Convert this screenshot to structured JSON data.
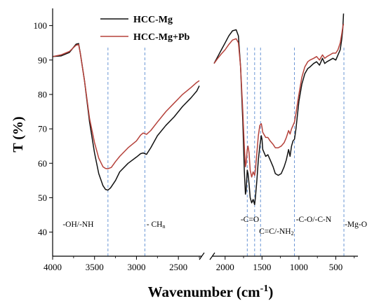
{
  "chart_data": {
    "type": "line",
    "title": "",
    "xlabel": "Wavenumber (cm",
    "xlabel_sup": "-1",
    "xlabel_close": ")",
    "ylabel": "T (%)",
    "x_break": [
      2200,
      2150
    ],
    "xlim_left": [
      4000,
      2200
    ],
    "xlim_right": [
      2150,
      200
    ],
    "ylim": [
      33,
      105
    ],
    "x_ticks": [
      {
        "v": 4000,
        "label": "4000"
      },
      {
        "v": 3500,
        "label": "3500"
      },
      {
        "v": 3000,
        "label": "3000"
      },
      {
        "v": 2500,
        "label": "2500"
      },
      {
        "v": 2000,
        "label": "2000"
      },
      {
        "v": 1500,
        "label": "1500"
      },
      {
        "v": 1000,
        "label": "1000"
      },
      {
        "v": 500,
        "label": "500"
      }
    ],
    "y_ticks": [
      {
        "v": 40,
        "label": "40"
      },
      {
        "v": 50,
        "label": "50"
      },
      {
        "v": 60,
        "label": "60"
      },
      {
        "v": 70,
        "label": "70"
      },
      {
        "v": 80,
        "label": "80"
      },
      {
        "v": 90,
        "label": "90"
      },
      {
        "v": 100,
        "label": "100"
      }
    ],
    "legend_position": "top-left",
    "series": [
      {
        "name": "HCC-Mg",
        "color": "#111111",
        "segments": [
          [
            [
              4000,
              91
            ],
            [
              3900,
              91.2
            ],
            [
              3800,
              92.2
            ],
            [
              3720,
              94.6
            ],
            [
              3690,
              94.8
            ],
            [
              3670,
              92
            ],
            [
              3620,
              84
            ],
            [
              3560,
              72
            ],
            [
              3500,
              63
            ],
            [
              3450,
              57
            ],
            [
              3400,
              53.5
            ],
            [
              3370,
              52.4
            ],
            [
              3340,
              52.2
            ],
            [
              3310,
              52.8
            ],
            [
              3250,
              55
            ],
            [
              3200,
              57.5
            ],
            [
              3100,
              60
            ],
            [
              3000,
              61.8
            ],
            [
              2950,
              62.8
            ],
            [
              2920,
              63
            ],
            [
              2880,
              62.6
            ],
            [
              2830,
              64.5
            ],
            [
              2750,
              68
            ],
            [
              2650,
              71
            ],
            [
              2550,
              73.5
            ],
            [
              2450,
              76.5
            ],
            [
              2350,
              79
            ],
            [
              2280,
              81
            ],
            [
              2250,
              82.5
            ]
          ],
          [
            [
              2150,
              89
            ],
            [
              2100,
              91
            ],
            [
              2050,
              93
            ],
            [
              2000,
              95
            ],
            [
              1950,
              97
            ],
            [
              1900,
              98.5
            ],
            [
              1850,
              98.8
            ],
            [
              1820,
              97
            ],
            [
              1790,
              88
            ],
            [
              1760,
              72
            ],
            [
              1740,
              58
            ],
            [
              1725,
              51
            ],
            [
              1715,
              52
            ],
            [
              1700,
              58
            ],
            [
              1690,
              57
            ],
            [
              1675,
              54
            ],
            [
              1660,
              50
            ],
            [
              1640,
              48.5
            ],
            [
              1620,
              49.5
            ],
            [
              1600,
              48
            ],
            [
              1590,
              50
            ],
            [
              1570,
              55
            ],
            [
              1550,
              61
            ],
            [
              1530,
              65
            ],
            [
              1510,
              68
            ],
            [
              1500,
              67
            ],
            [
              1490,
              64
            ],
            [
              1450,
              62
            ],
            [
              1420,
              62.5
            ],
            [
              1390,
              61
            ],
            [
              1350,
              59
            ],
            [
              1320,
              57
            ],
            [
              1280,
              56.5
            ],
            [
              1240,
              57
            ],
            [
              1200,
              59
            ],
            [
              1170,
              61
            ],
            [
              1140,
              64
            ],
            [
              1120,
              62
            ],
            [
              1100,
              65
            ],
            [
              1080,
              66.5
            ],
            [
              1060,
              67
            ],
            [
              1040,
              70
            ],
            [
              1000,
              78
            ],
            [
              960,
              83
            ],
            [
              920,
              86
            ],
            [
              880,
              87.5
            ],
            [
              850,
              88
            ],
            [
              800,
              89
            ],
            [
              760,
              89.5
            ],
            [
              720,
              88.5
            ],
            [
              680,
              90.5
            ],
            [
              650,
              89
            ],
            [
              620,
              89.5
            ],
            [
              580,
              90
            ],
            [
              540,
              90.5
            ],
            [
              500,
              90
            ],
            [
              470,
              91.5
            ],
            [
              440,
              93
            ],
            [
              420,
              96
            ],
            [
              405,
              99
            ],
            [
              395,
              103.5
            ]
          ]
        ]
      },
      {
        "name": "HCC-Mg+Pb",
        "color": "#b5413a",
        "segments": [
          [
            [
              4000,
              91
            ],
            [
              3900,
              91.5
            ],
            [
              3800,
              92.5
            ],
            [
              3720,
              94.3
            ],
            [
              3690,
              94.5
            ],
            [
              3670,
              92
            ],
            [
              3620,
              84
            ],
            [
              3560,
              73
            ],
            [
              3500,
              66
            ],
            [
              3450,
              61.5
            ],
            [
              3400,
              59
            ],
            [
              3370,
              58.5
            ],
            [
              3340,
              58.4
            ],
            [
              3300,
              58.8
            ],
            [
              3250,
              60.5
            ],
            [
              3200,
              62
            ],
            [
              3100,
              64.5
            ],
            [
              3000,
              66.5
            ],
            [
              2950,
              68.2
            ],
            [
              2920,
              68.8
            ],
            [
              2880,
              68.4
            ],
            [
              2830,
              69.5
            ],
            [
              2750,
              72
            ],
            [
              2650,
              75
            ],
            [
              2550,
              77.5
            ],
            [
              2450,
              80
            ],
            [
              2350,
              82
            ],
            [
              2280,
              83.5
            ],
            [
              2250,
              84
            ]
          ],
          [
            [
              2150,
              89
            ],
            [
              2100,
              90.5
            ],
            [
              2050,
              91.8
            ],
            [
              2000,
              93
            ],
            [
              1950,
              94.5
            ],
            [
              1900,
              95.8
            ],
            [
              1850,
              96.2
            ],
            [
              1820,
              95
            ],
            [
              1790,
              88
            ],
            [
              1760,
              75
            ],
            [
              1740,
              65
            ],
            [
              1725,
              59
            ],
            [
              1715,
              60
            ],
            [
              1700,
              64
            ],
            [
              1690,
              65
            ],
            [
              1675,
              63
            ],
            [
              1660,
              58
            ],
            [
              1640,
              56
            ],
            [
              1620,
              57.5
            ],
            [
              1600,
              56.5
            ],
            [
              1590,
              58
            ],
            [
              1570,
              63
            ],
            [
              1550,
              68
            ],
            [
              1530,
              71
            ],
            [
              1510,
              71.5
            ],
            [
              1500,
              70.5
            ],
            [
              1490,
              69
            ],
            [
              1450,
              67.5
            ],
            [
              1420,
              67.5
            ],
            [
              1390,
              66.5
            ],
            [
              1350,
              65.5
            ],
            [
              1320,
              64.5
            ],
            [
              1280,
              64.5
            ],
            [
              1240,
              65
            ],
            [
              1200,
              66
            ],
            [
              1170,
              67.5
            ],
            [
              1140,
              69.5
            ],
            [
              1120,
              68.5
            ],
            [
              1100,
              70
            ],
            [
              1080,
              71
            ],
            [
              1060,
              72
            ],
            [
              1040,
              74.5
            ],
            [
              1000,
              80
            ],
            [
              960,
              85
            ],
            [
              920,
              88
            ],
            [
              880,
              89.5
            ],
            [
              850,
              90
            ],
            [
              800,
              90.5
            ],
            [
              760,
              91
            ],
            [
              720,
              90
            ],
            [
              680,
              91.5
            ],
            [
              650,
              90.5
            ],
            [
              620,
              91
            ],
            [
              580,
              91.5
            ],
            [
              540,
              92
            ],
            [
              500,
              92
            ],
            [
              470,
              93
            ],
            [
              440,
              95
            ],
            [
              420,
              97.5
            ],
            [
              405,
              99.5
            ],
            [
              395,
              100.5
            ]
          ]
        ]
      }
    ],
    "markers": [
      {
        "x": 3340,
        "label": "-OH/-NH",
        "label_y": 41.5,
        "label_x": 3880
      },
      {
        "x": 2900,
        "label": "- CH",
        "sub": "n",
        "label_y": 41.5,
        "label_x": 2880
      },
      {
        "x": 1700,
        "label": "-C=O",
        "label_y": 43,
        "label_x": 1790
      },
      {
        "x": 1600,
        "label": "",
        "label_y": 0,
        "label_x": 0
      },
      {
        "x": 1520,
        "label": "C=C/-NH",
        "sub": "2",
        "label_y": 39.5,
        "label_x": 1540
      },
      {
        "x": 1060,
        "label": "-C-O/-C-N",
        "label_y": 43,
        "label_x": 1040
      },
      {
        "x": 390,
        "label": "-Mg-O",
        "label_y": 41.5,
        "label_x": 380
      }
    ]
  }
}
